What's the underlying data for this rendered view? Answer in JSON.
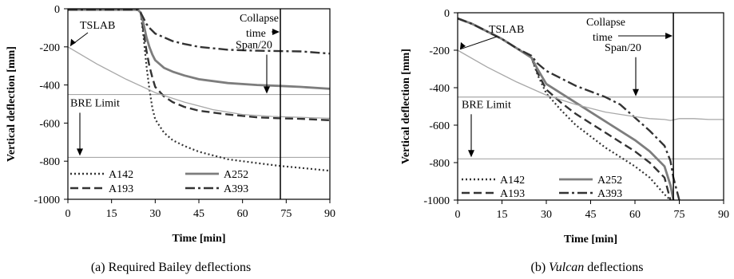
{
  "chart_data": [
    {
      "type": "line",
      "caption": "(a) Required Bailey deflections",
      "xlabel": "Time [min]",
      "ylabel": "Vertical deflection [mm]",
      "xlim": [
        0,
        90
      ],
      "ylim": [
        -1000,
        0
      ],
      "xticks": [
        "0",
        "15",
        "30",
        "45",
        "60",
        "75",
        "90"
      ],
      "yticks": [
        "0",
        "-200",
        "-400",
        "-600",
        "-800",
        "-1000"
      ],
      "grid": false,
      "legend_position": "bottom-left",
      "series": [
        {
          "name": "A142",
          "style": "dotted",
          "x": [
            0,
            24,
            25,
            26,
            27,
            28,
            29,
            30,
            33,
            36,
            40,
            45,
            55,
            65,
            73,
            80,
            90
          ],
          "y": [
            -5,
            -5,
            -20,
            -150,
            -300,
            -420,
            -520,
            -580,
            -650,
            -690,
            -720,
            -750,
            -790,
            -810,
            -825,
            -835,
            -850
          ]
        },
        {
          "name": "A193",
          "style": "dashed",
          "x": [
            0,
            24,
            25,
            26,
            27,
            28,
            29,
            30,
            33,
            36,
            40,
            45,
            55,
            65,
            73,
            80,
            90
          ],
          "y": [
            -5,
            -5,
            -20,
            -120,
            -220,
            -300,
            -360,
            -410,
            -460,
            -490,
            -515,
            -535,
            -555,
            -570,
            -575,
            -578,
            -585
          ]
        },
        {
          "name": "A252",
          "style": "solid",
          "x": [
            0,
            24,
            25,
            26,
            27,
            28,
            29,
            30,
            33,
            36,
            40,
            45,
            55,
            65,
            73,
            80,
            90
          ],
          "y": [
            -5,
            -5,
            -20,
            -80,
            -150,
            -200,
            -240,
            -270,
            -310,
            -330,
            -350,
            -370,
            -390,
            -400,
            -405,
            -410,
            -420
          ]
        },
        {
          "name": "A393",
          "style": "dashdot",
          "x": [
            0,
            24,
            25,
            26,
            27,
            28,
            29,
            30,
            33,
            36,
            40,
            45,
            55,
            65,
            73,
            80,
            90
          ],
          "y": [
            -5,
            -5,
            -20,
            -50,
            -80,
            -100,
            -115,
            -130,
            -150,
            -170,
            -185,
            -200,
            -215,
            -220,
            -222,
            -224,
            -235
          ]
        },
        {
          "name": "TSLAB",
          "style": "thin",
          "x": [
            0,
            10,
            20,
            30,
            40,
            50,
            60,
            70,
            80,
            90
          ],
          "y": [
            -200,
            -290,
            -370,
            -440,
            -490,
            -530,
            -555,
            -565,
            -570,
            -575
          ]
        }
      ],
      "reference_lines": [
        {
          "label": "Span/20",
          "y": -450
        },
        {
          "label": "BRE Limit",
          "y": -780
        }
      ],
      "collapse": {
        "label_line1": "Collapse",
        "label_line2": "time",
        "x": 73
      }
    },
    {
      "type": "line",
      "caption_prefix": "(b) ",
      "caption_italic": "Vulcan",
      "caption_suffix": " deflections",
      "xlabel": "Time [min]",
      "ylabel": "Vertical deflection [mm]",
      "xlim": [
        0,
        90
      ],
      "ylim": [
        -1000,
        0
      ],
      "xticks": [
        "0",
        "15",
        "30",
        "45",
        "60",
        "75",
        "90"
      ],
      "yticks": [
        "0",
        "-200",
        "-400",
        "-600",
        "-800",
        "-1000"
      ],
      "grid": false,
      "legend_position": "bottom-left",
      "series": [
        {
          "name": "A142",
          "style": "dotted",
          "x": [
            0,
            5,
            10,
            15,
            20,
            25,
            27,
            30,
            35,
            40,
            45,
            50,
            55,
            60,
            65,
            70,
            72
          ],
          "y": [
            -30,
            -60,
            -100,
            -140,
            -190,
            -240,
            -330,
            -430,
            -520,
            -600,
            -660,
            -720,
            -770,
            -820,
            -880,
            -970,
            -1000
          ]
        },
        {
          "name": "A193",
          "style": "dashed",
          "x": [
            0,
            5,
            10,
            15,
            20,
            25,
            27,
            30,
            35,
            40,
            45,
            50,
            55,
            60,
            65,
            70,
            72
          ],
          "y": [
            -30,
            -60,
            -100,
            -140,
            -190,
            -240,
            -320,
            -410,
            -480,
            -540,
            -590,
            -640,
            -690,
            -740,
            -800,
            -880,
            -1000
          ]
        },
        {
          "name": "A252",
          "style": "solid",
          "x": [
            0,
            5,
            10,
            15,
            20,
            25,
            27,
            30,
            35,
            40,
            45,
            50,
            55,
            60,
            65,
            70,
            72,
            73
          ],
          "y": [
            -30,
            -60,
            -100,
            -140,
            -190,
            -240,
            -300,
            -380,
            -430,
            -480,
            -530,
            -580,
            -630,
            -680,
            -740,
            -820,
            -920,
            -1000
          ]
        },
        {
          "name": "A393",
          "style": "dashdot",
          "x": [
            0,
            5,
            10,
            15,
            20,
            25,
            27,
            30,
            35,
            40,
            45,
            50,
            55,
            60,
            65,
            70,
            72,
            73,
            75
          ],
          "y": [
            -30,
            -60,
            -100,
            -140,
            -190,
            -230,
            -270,
            -310,
            -350,
            -390,
            -420,
            -450,
            -490,
            -560,
            -630,
            -710,
            -790,
            -880,
            -1000
          ]
        },
        {
          "name": "TSLAB",
          "style": "thin",
          "x": [
            0,
            10,
            20,
            30,
            40,
            50,
            60,
            65,
            70,
            72,
            75,
            80,
            85,
            90
          ],
          "y": [
            -200,
            -290,
            -370,
            -440,
            -490,
            -530,
            -555,
            -565,
            -570,
            -575,
            -565,
            -565,
            -570,
            -570
          ]
        }
      ],
      "reference_lines": [
        {
          "label": "Span/20",
          "y": -450
        },
        {
          "label": "BRE Limit",
          "y": -780
        }
      ],
      "collapse": {
        "label_line1": "Collapse",
        "label_line2": "time",
        "x": 73
      }
    }
  ],
  "labels": {
    "tslab": "TSLAB"
  },
  "colors": {
    "line": "#000000",
    "tslab": "#a8a8a8",
    "ref_line": "#a8a8a8",
    "series_main": "#333333",
    "series_a252": "#7d7d7d"
  }
}
